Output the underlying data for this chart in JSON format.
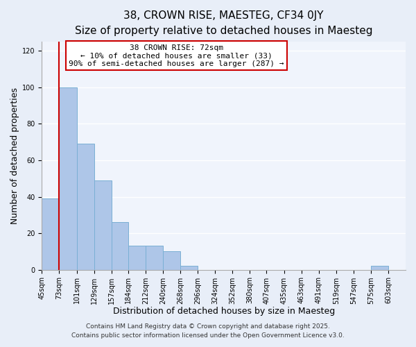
{
  "title": "38, CROWN RISE, MAESTEG, CF34 0JY",
  "subtitle": "Size of property relative to detached houses in Maesteg",
  "xlabel": "Distribution of detached houses by size in Maesteg",
  "ylabel": "Number of detached properties",
  "bar_color": "#aec6e8",
  "bar_edge_color": "#7aafd4",
  "background_color": "#e8eef8",
  "plot_bg_color": "#f0f4fc",
  "grid_color": "#ffffff",
  "vline_x": 73,
  "vline_color": "#cc0000",
  "annotation_box_text": "38 CROWN RISE: 72sqm\n← 10% of detached houses are smaller (33)\n90% of semi-detached houses are larger (287) →",
  "annotation_box_color": "#cc0000",
  "annotation_box_bg": "#ffffff",
  "categories": [
    "45sqm",
    "73sqm",
    "101sqm",
    "129sqm",
    "157sqm",
    "184sqm",
    "212sqm",
    "240sqm",
    "268sqm",
    "296sqm",
    "324sqm",
    "352sqm",
    "380sqm",
    "407sqm",
    "435sqm",
    "463sqm",
    "491sqm",
    "519sqm",
    "547sqm",
    "575sqm",
    "603sqm"
  ],
  "bin_edges": [
    45,
    73,
    101,
    129,
    157,
    184,
    212,
    240,
    268,
    296,
    324,
    352,
    380,
    407,
    435,
    463,
    491,
    519,
    547,
    575,
    603
  ],
  "values": [
    39,
    100,
    69,
    49,
    26,
    13,
    13,
    10,
    2,
    0,
    0,
    0,
    0,
    0,
    0,
    0,
    0,
    0,
    0,
    2,
    0
  ],
  "ylim": [
    0,
    125
  ],
  "yticks": [
    0,
    20,
    40,
    60,
    80,
    100,
    120
  ],
  "footer_line1": "Contains HM Land Registry data © Crown copyright and database right 2025.",
  "footer_line2": "Contains public sector information licensed under the Open Government Licence v3.0.",
  "title_fontsize": 11,
  "subtitle_fontsize": 9.5,
  "axis_label_fontsize": 9,
  "tick_fontsize": 7,
  "annotation_fontsize": 8,
  "footer_fontsize": 6.5
}
